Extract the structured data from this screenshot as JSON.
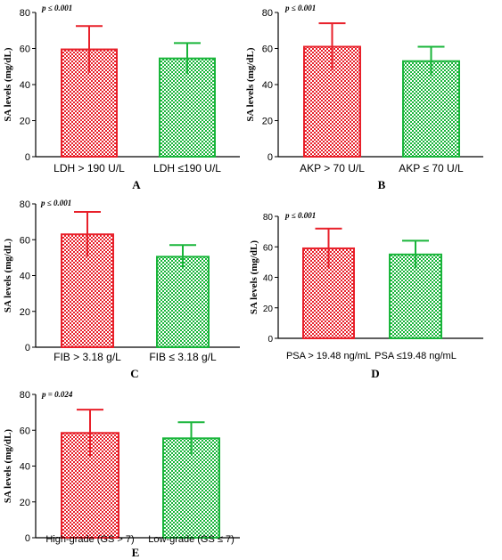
{
  "colors": {
    "high": "#e8202a",
    "low": "#19b53a",
    "axis": "#000000"
  },
  "chart_data": [
    {
      "panel": "A",
      "type": "bar",
      "p_text": "p ≤ 0.001",
      "ylabel": "SA levels (mg/dL)",
      "ylim": [
        0,
        80
      ],
      "yticks": [
        0,
        20,
        40,
        60,
        80
      ],
      "categories": [
        "LDH > 190 U/L",
        "LDH ≤190 U/L"
      ],
      "values": [
        59.5,
        54.5
      ],
      "errors": [
        13,
        8.5
      ],
      "bar_colors": [
        "high",
        "low"
      ]
    },
    {
      "panel": "B",
      "type": "bar",
      "p_text": "p ≤ 0.001",
      "ylabel": "SA levels (mg/dL)",
      "ylim": [
        0,
        80
      ],
      "yticks": [
        0,
        20,
        40,
        60,
        80
      ],
      "categories": [
        "AKP > 70 U/L",
        "AKP ≤ 70 U/L"
      ],
      "values": [
        61,
        53
      ],
      "errors": [
        13,
        8
      ],
      "bar_colors": [
        "high",
        "low"
      ]
    },
    {
      "panel": "C",
      "type": "bar",
      "p_text": "p ≤ 0.001",
      "ylabel": "SA levels (mg/dL)",
      "ylim": [
        0,
        80
      ],
      "yticks": [
        0,
        20,
        40,
        60,
        80
      ],
      "categories": [
        "FIB > 3.18 g/L",
        "FIB ≤ 3.18 g/L"
      ],
      "values": [
        63,
        50.5
      ],
      "errors": [
        12.5,
        6.5
      ],
      "bar_colors": [
        "high",
        "low"
      ]
    },
    {
      "panel": "D",
      "type": "bar",
      "p_text": "p ≤ 0.001",
      "ylabel": "SA levels (mg/dL)",
      "ylim": [
        0,
        80
      ],
      "yticks": [
        0,
        20,
        40,
        60,
        80
      ],
      "categories": [
        "PSA > 19.48 ng/mL",
        "PSA ≤19.48 ng/mL"
      ],
      "values": [
        59,
        55
      ],
      "errors": [
        13,
        9
      ],
      "bar_colors": [
        "high",
        "low"
      ]
    },
    {
      "panel": "E",
      "type": "bar",
      "p_text": "p = 0.024",
      "ylabel": "SA levels (mg/dL)",
      "ylim": [
        0,
        80
      ],
      "yticks": [
        0,
        20,
        40,
        60,
        80
      ],
      "categories": [
        "High-grade  (GS > 7)",
        "Low-grade  (GS ≤ 7)"
      ],
      "values": [
        58.5,
        55.5
      ],
      "errors": [
        13,
        9
      ],
      "bar_colors": [
        "high",
        "low"
      ]
    }
  ]
}
